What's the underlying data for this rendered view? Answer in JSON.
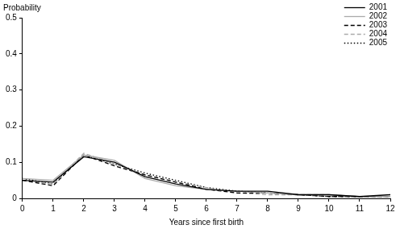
{
  "chart_data": {
    "type": "line",
    "y_label": "Probability",
    "x_label": "Years since first birth",
    "x": [
      0,
      1,
      2,
      3,
      4,
      5,
      6,
      7,
      8,
      9,
      10,
      11,
      12
    ],
    "xlim": [
      0,
      12
    ],
    "xticks": [
      0,
      1,
      2,
      3,
      4,
      5,
      6,
      7,
      8,
      9,
      10,
      11,
      12
    ],
    "ylim": [
      0,
      0.5
    ],
    "yticks": [
      0,
      0.1,
      0.2,
      0.3,
      0.4,
      0.5
    ],
    "grid": false,
    "legend": "top-right",
    "series": [
      {
        "name": "2001",
        "color": "#000000",
        "line_style": "solid",
        "values": [
          0.05,
          0.045,
          0.115,
          0.1,
          0.06,
          0.04,
          0.025,
          0.02,
          0.02,
          0.01,
          0.01,
          0.005,
          0.01
        ]
      },
      {
        "name": "2002",
        "color": "#aaaaaa",
        "line_style": "solid",
        "values": [
          0.055,
          0.05,
          0.12,
          0.105,
          0.055,
          0.035,
          0.025,
          0.02,
          0.015,
          0.01,
          0.01,
          0.005,
          0.005
        ]
      },
      {
        "name": "2003",
        "color": "#000000",
        "line_style": "dashed",
        "values": [
          0.05,
          0.035,
          0.12,
          0.09,
          0.065,
          0.045,
          0.025,
          0.015,
          0.015,
          0.01,
          0.005,
          0.005,
          0.005
        ]
      },
      {
        "name": "2004",
        "color": "#aaaaaa",
        "line_style": "dashed",
        "values": [
          0.05,
          0.04,
          0.125,
          0.095,
          0.065,
          0.045,
          0.03,
          0.015,
          0.01,
          0.01,
          0.01,
          0.005,
          0.005
        ]
      },
      {
        "name": "2005",
        "color": "#000000",
        "line_style": "dotted",
        "values": [
          0.055,
          0.04,
          0.12,
          0.095,
          0.07,
          0.05,
          0.03,
          0.02,
          0.015,
          0.01,
          0.005,
          0.005,
          0.005
        ]
      }
    ]
  }
}
